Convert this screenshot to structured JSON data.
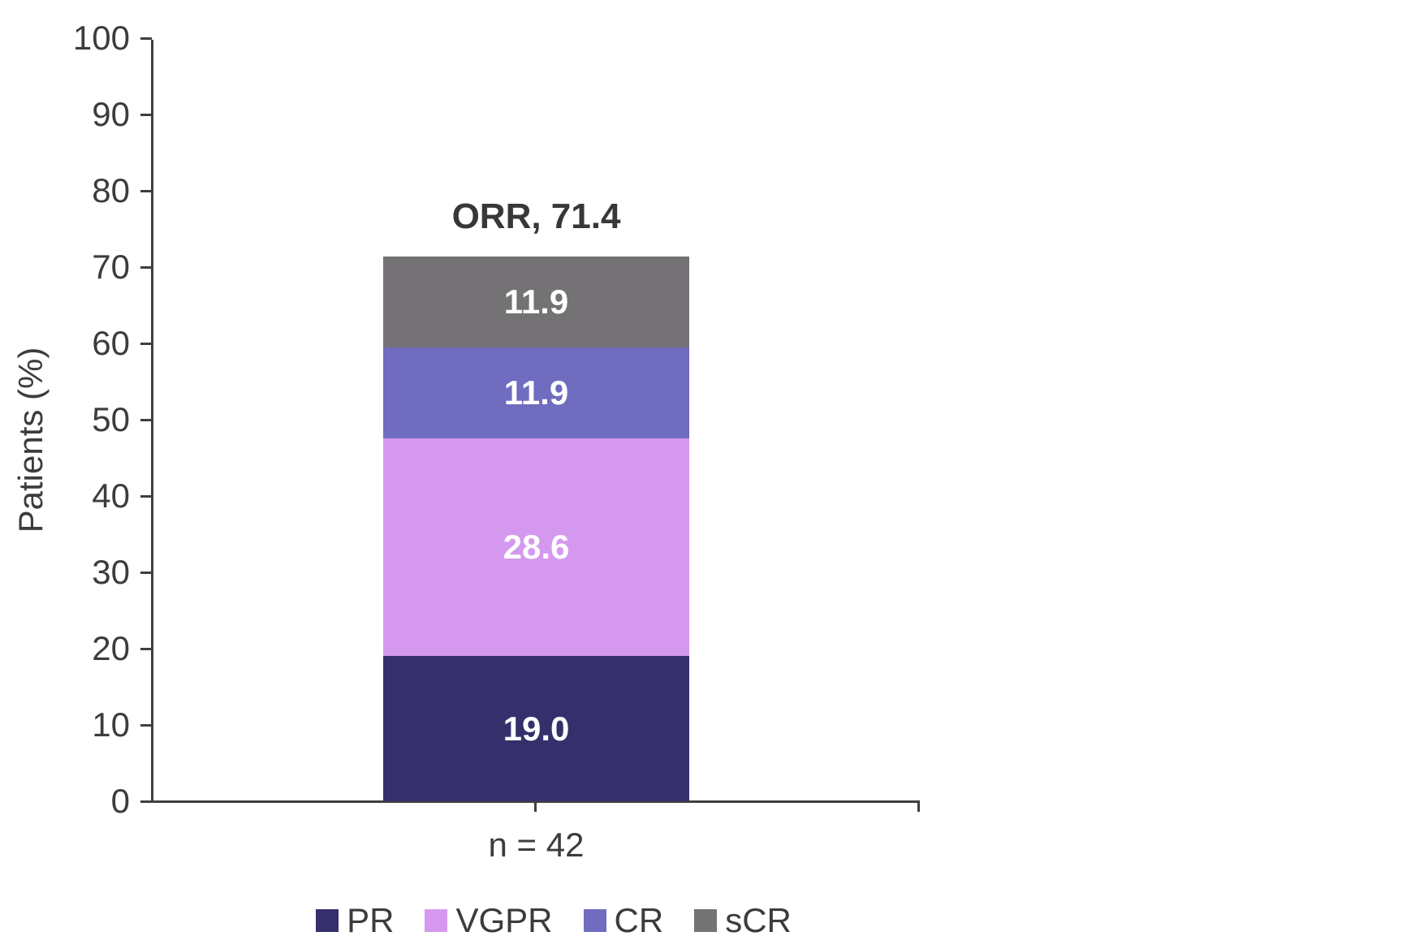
{
  "chart_data": {
    "type": "bar",
    "stacked": true,
    "ylabel": "Patients (%)",
    "ylim": [
      0,
      100
    ],
    "yticks": [
      0,
      10,
      20,
      30,
      40,
      50,
      60,
      70,
      80,
      90,
      100
    ],
    "grid": false,
    "categories": [
      "n = 42"
    ],
    "series": [
      {
        "name": "PR",
        "values": [
          19.0
        ],
        "display": "19.0",
        "color": "#35306B"
      },
      {
        "name": "VGPR",
        "values": [
          28.6
        ],
        "display": "28.6",
        "color": "#D499EE"
      },
      {
        "name": "CR",
        "values": [
          11.9
        ],
        "display": "11.9",
        "color": "#706CC0"
      },
      {
        "name": "sCR",
        "values": [
          11.9
        ],
        "display": "11.9",
        "color": "#747274"
      }
    ],
    "annotation": {
      "text": "ORR, 71.4",
      "value": 71.4
    },
    "legend": [
      "PR",
      "VGPR",
      "CR",
      "sCR"
    ],
    "legend_position": "bottom",
    "value_label_color": "#ffffff",
    "axis_color": "#3f3f3f",
    "text_color": "#3c3c3c"
  }
}
